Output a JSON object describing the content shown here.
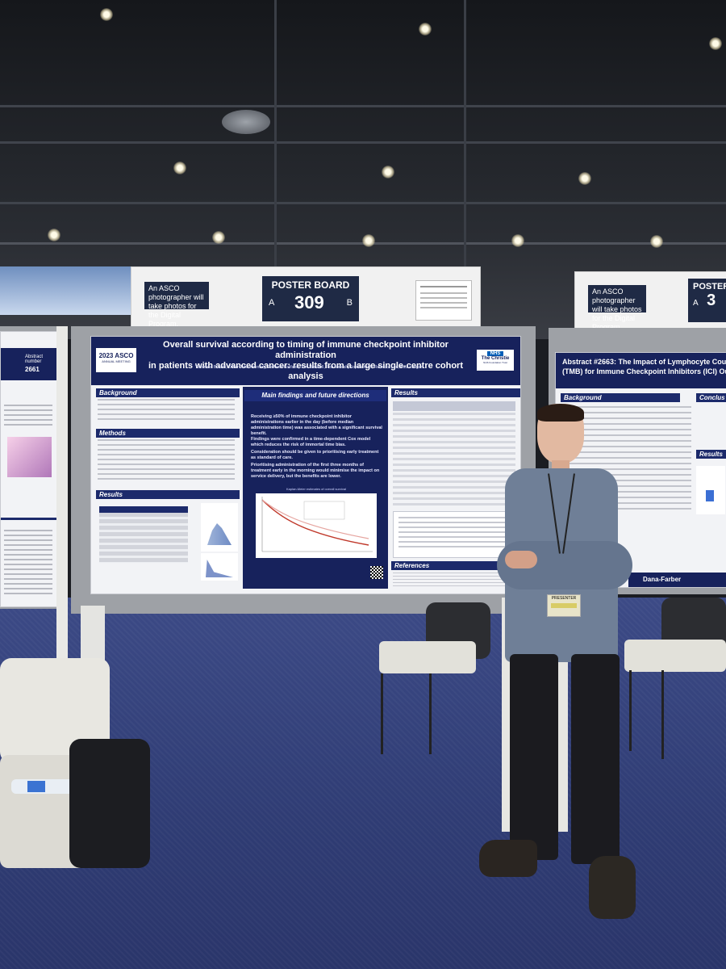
{
  "scene": {
    "description_colors": {
      "carpet": "#2f3c74",
      "poster_navy": "#17225c",
      "board_grey": "#9ea1a6"
    }
  },
  "header_center": {
    "photo_note": "An ASCO photographer will take photos for the Digital Program.",
    "poster_board_label": "POSTER BOARD",
    "side_a": "A",
    "board_number": "309",
    "side_b": "B"
  },
  "header_right": {
    "photo_note": "An ASCO photographer will take photos for the Digital Program.",
    "poster_board_label": "POSTER",
    "side_a": "A",
    "board_number": "3"
  },
  "left_poster": {
    "abstract_label": "Abstract number",
    "abstract_number": "2661"
  },
  "main_poster": {
    "logo_year": "2023 ASCO",
    "logo_sub": "ANNUAL MEETING",
    "title_line1": "Overall survival according to timing of immune checkpoint inhibitor administration",
    "title_line2": "in patients with advanced cancer: results from a large single-centre cohort analysis",
    "authors": "Tommaso Bosetti, Oliver John Kennedy, Raffaele Califano, Tom Waddell, Rob Metcalf, Sophie Kreft, Rebecca Lee, Paul Lorigan",
    "nhs_logo": "NHS",
    "org_name": "The Christie",
    "org_sub": "NHS Foundation Trust",
    "sections": {
      "background": "Background",
      "methods": "Methods",
      "results_left": "Results",
      "main_findings": "Main findings and future directions",
      "results_right": "Results",
      "references": "References"
    },
    "findings": [
      "Receiving ≥50% of immune checkpoint inhibitor administrations earlier in the day (before median administration time) was associated with a significant survival benefit.",
      "Findings were confirmed in a time-dependent Cox model which reduces the risk of immortal time bias.",
      "Consideration should be given to prioritising early treatment as standard of care.",
      "Prioritising administration of the first three months of treatment early in the morning would minimise the impact on service delivery, but the benefits are lower."
    ],
    "km_title": "Kaplan-Meier estimates of overall survival"
  },
  "right_poster": {
    "abstract_title_line1": "Abstract #2663: The Impact of Lymphocyte Cou",
    "abstract_title_line2": "(TMB) for Immune Checkpoint Inhibitors (ICI) Outc",
    "background": "Background",
    "conclusion": "Conclus",
    "results": "Results",
    "logo": "Dana-Farber"
  },
  "badge": {
    "text": "PRESENTER"
  }
}
